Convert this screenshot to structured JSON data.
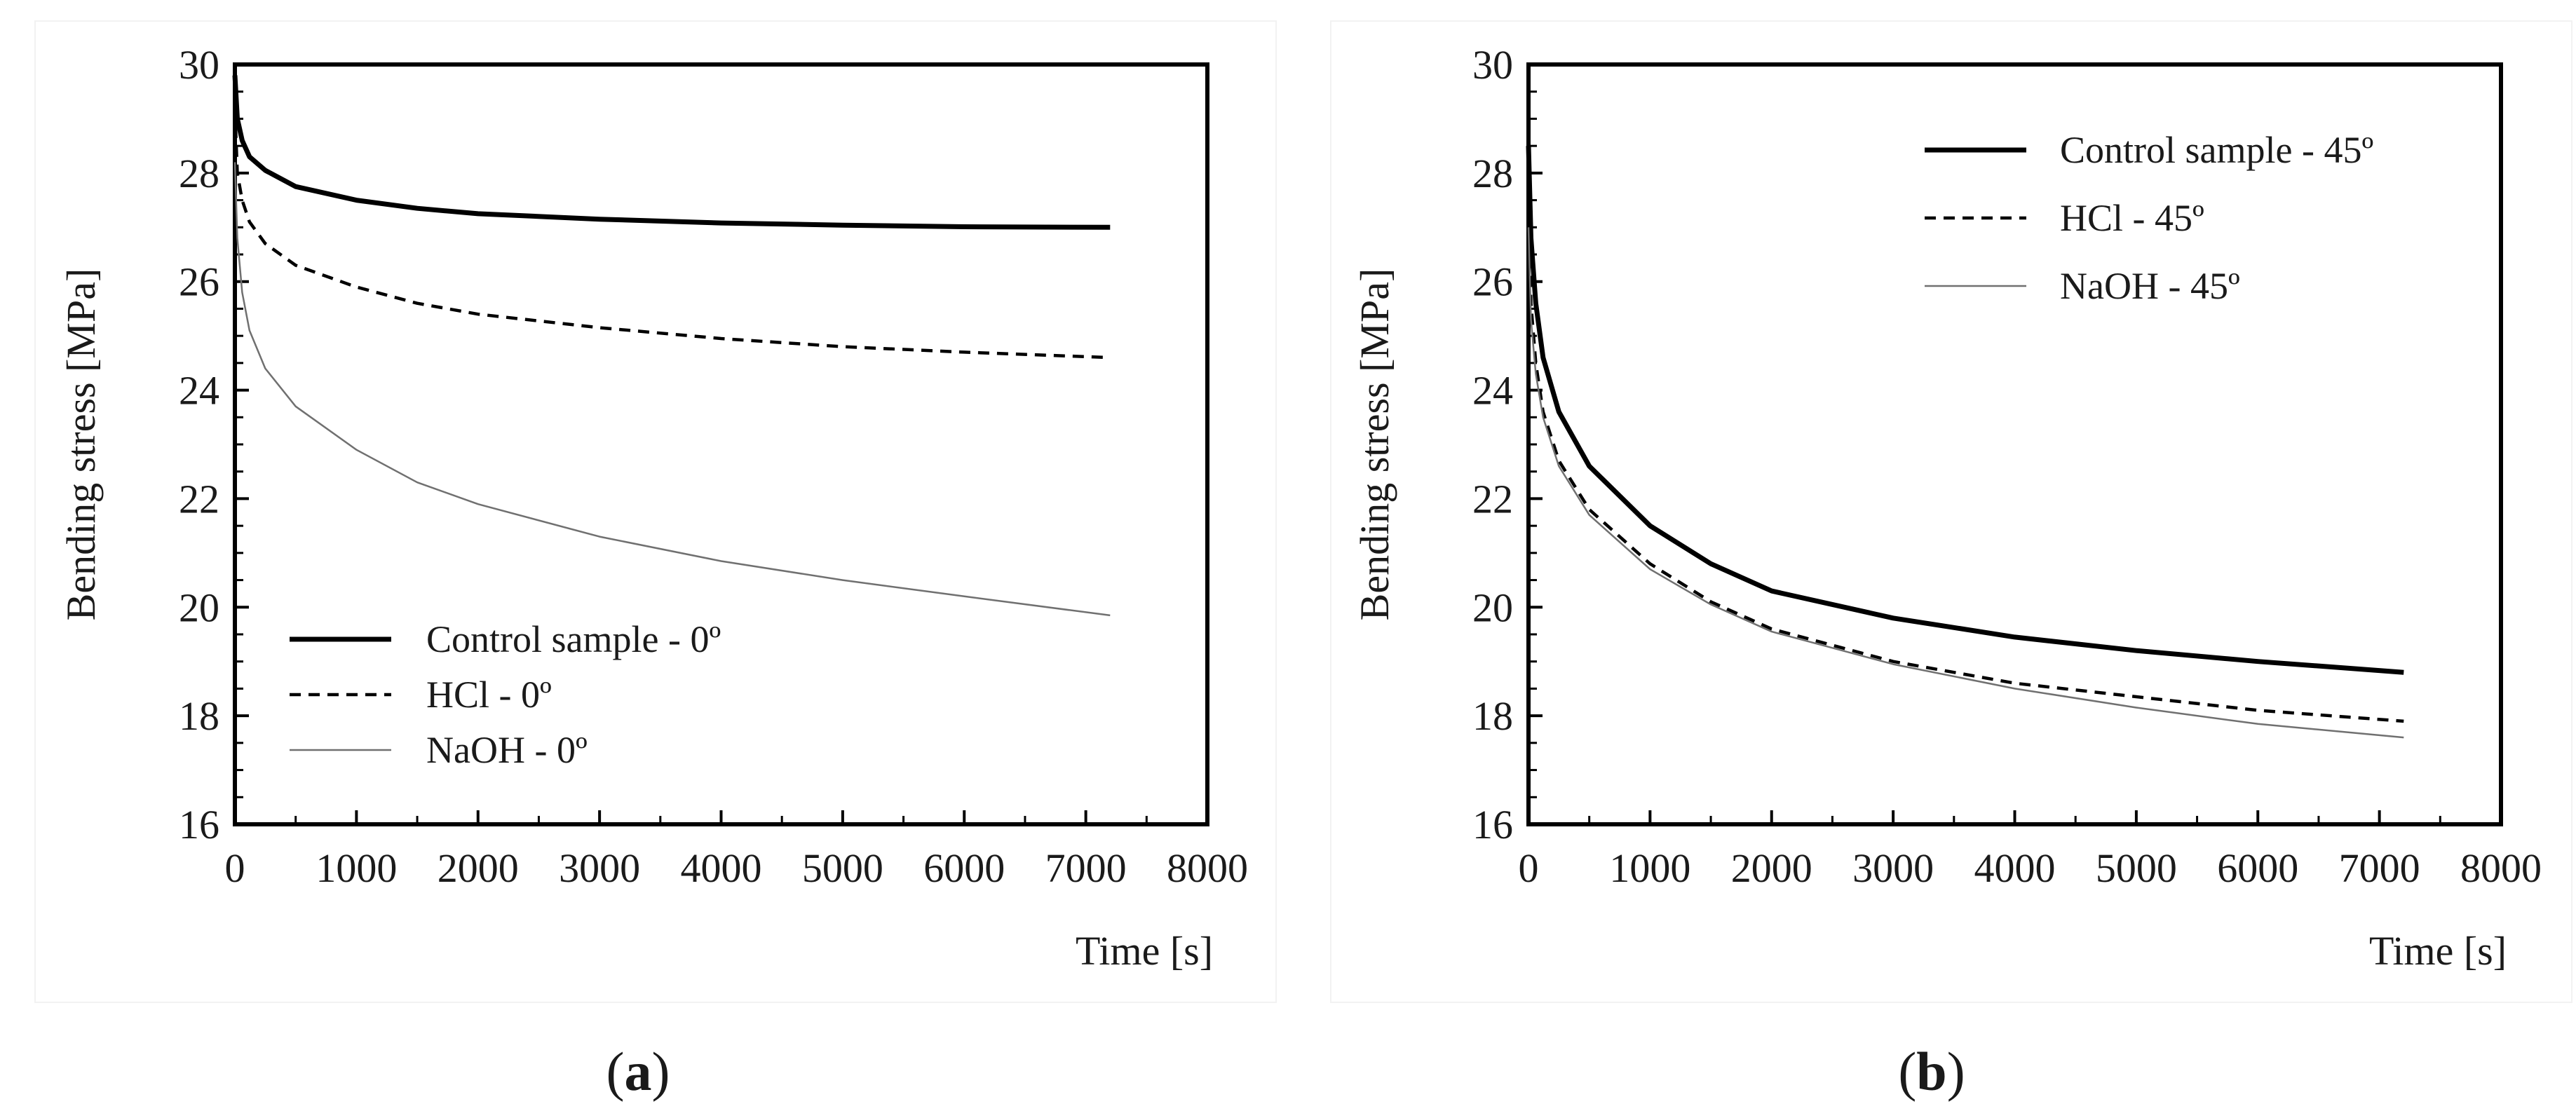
{
  "figure": {
    "panels": [
      {
        "caption_open": "(",
        "caption_letter": "a",
        "caption_close": ")"
      },
      {
        "caption_open": "(",
        "caption_letter": "b",
        "caption_close": ")"
      }
    ]
  },
  "chart_data": [
    {
      "type": "line",
      "panel": "a",
      "title": "",
      "xlabel": "Time [s]",
      "ylabel": "Bending stress [MPa]",
      "xlim": [
        0,
        8000
      ],
      "ylim": [
        16,
        30
      ],
      "xticks": [
        0,
        1000,
        2000,
        3000,
        4000,
        5000,
        6000,
        7000,
        8000
      ],
      "yticks": [
        16,
        18,
        20,
        22,
        24,
        26,
        28,
        30
      ],
      "grid": false,
      "legend_position": "bottom-left",
      "series": [
        {
          "name": "Control sample - 0º",
          "style": "solid-thick",
          "color": "#000000",
          "x": [
            0,
            20,
            60,
            120,
            250,
            500,
            1000,
            1500,
            2000,
            3000,
            4000,
            5000,
            6000,
            7200
          ],
          "y": [
            29.8,
            29.0,
            28.6,
            28.3,
            28.05,
            27.75,
            27.5,
            27.35,
            27.25,
            27.15,
            27.08,
            27.04,
            27.01,
            27.0
          ]
        },
        {
          "name": "HCl - 0º",
          "style": "dashed",
          "color": "#000000",
          "x": [
            0,
            20,
            60,
            120,
            250,
            500,
            1000,
            1500,
            2000,
            3000,
            4000,
            5000,
            6000,
            7200
          ],
          "y": [
            29.2,
            28.0,
            27.5,
            27.1,
            26.7,
            26.3,
            25.9,
            25.6,
            25.4,
            25.15,
            24.95,
            24.8,
            24.7,
            24.6
          ]
        },
        {
          "name": "NaOH - 0º",
          "style": "solid-thin",
          "color": "#707070",
          "x": [
            0,
            20,
            60,
            120,
            250,
            500,
            1000,
            1500,
            2000,
            3000,
            4000,
            5000,
            6000,
            7200
          ],
          "y": [
            28.2,
            26.8,
            25.8,
            25.1,
            24.4,
            23.7,
            22.9,
            22.3,
            21.9,
            21.3,
            20.85,
            20.5,
            20.2,
            19.85
          ]
        }
      ]
    },
    {
      "type": "line",
      "panel": "b",
      "title": "",
      "xlabel": "Time [s]",
      "ylabel": "Bending stress [MPa]",
      "xlim": [
        0,
        8000
      ],
      "ylim": [
        16,
        30
      ],
      "xticks": [
        0,
        1000,
        2000,
        3000,
        4000,
        5000,
        6000,
        7000,
        8000
      ],
      "yticks": [
        16,
        18,
        20,
        22,
        24,
        26,
        28,
        30
      ],
      "grid": false,
      "legend_position": "top-right",
      "series": [
        {
          "name": "Control sample - 45º",
          "style": "solid-thick",
          "color": "#000000",
          "x": [
            0,
            20,
            60,
            120,
            250,
            500,
            1000,
            1500,
            2000,
            3000,
            4000,
            5000,
            6000,
            7200
          ],
          "y": [
            28.5,
            26.8,
            25.6,
            24.6,
            23.6,
            22.6,
            21.5,
            20.8,
            20.3,
            19.8,
            19.45,
            19.2,
            19.0,
            18.8
          ]
        },
        {
          "name": "HCl - 45º",
          "style": "dashed",
          "color": "#000000",
          "x": [
            0,
            20,
            60,
            120,
            250,
            500,
            1000,
            1500,
            2000,
            3000,
            4000,
            5000,
            6000,
            7200
          ],
          "y": [
            27.5,
            25.6,
            24.5,
            23.6,
            22.7,
            21.8,
            20.8,
            20.1,
            19.6,
            19.0,
            18.6,
            18.35,
            18.1,
            17.9
          ]
        },
        {
          "name": "NaOH - 45º",
          "style": "solid-thin",
          "color": "#707070",
          "x": [
            0,
            20,
            60,
            120,
            250,
            500,
            1000,
            1500,
            2000,
            3000,
            4000,
            5000,
            6000,
            7200
          ],
          "y": [
            27.0,
            25.3,
            24.3,
            23.5,
            22.6,
            21.7,
            20.7,
            20.05,
            19.55,
            18.95,
            18.5,
            18.15,
            17.85,
            17.6
          ]
        }
      ]
    }
  ]
}
